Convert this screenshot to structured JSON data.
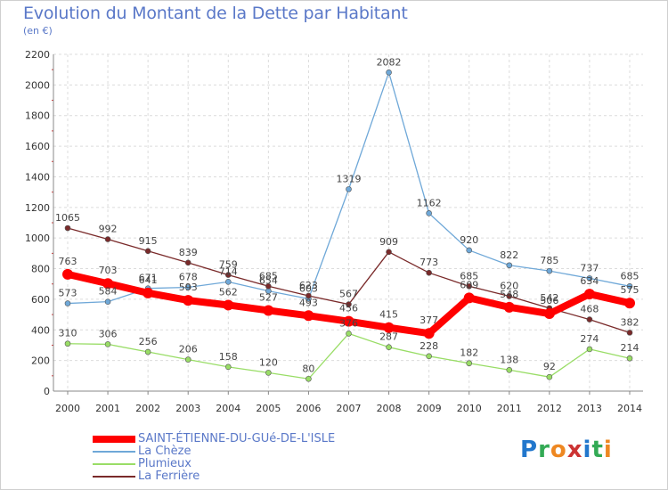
{
  "chart_data": {
    "type": "line",
    "title": "Evolution du Montant de la Dette par Habitant",
    "subtitle": "(en €)",
    "xlabel": "",
    "ylabel": "",
    "categories": [
      "2000",
      "2001",
      "2002",
      "2003",
      "2004",
      "2005",
      "2006",
      "2007",
      "2008",
      "2009",
      "2010",
      "2011",
      "2012",
      "2013",
      "2014"
    ],
    "ylim": [
      0,
      2200
    ],
    "yticks": [
      "0",
      "200",
      "400",
      "600",
      "800",
      "1000",
      "1200",
      "1400",
      "1600",
      "1800",
      "2000",
      "2200"
    ],
    "grid": true,
    "legend_position": "bottom-left",
    "series": [
      {
        "name": "SAINT-ÉTIENNE-DU-GUé-DE-L'ISLE",
        "color": "#ff0000",
        "values": [
          763,
          703,
          641,
          593,
          562,
          527,
          493,
          456,
          415,
          377,
          609,
          548,
          506,
          634,
          575
        ]
      },
      {
        "name": "La Chèze",
        "color": "#6fa8d8",
        "values": [
          573,
          584,
          671,
          678,
          714,
          654,
          603,
          1319,
          2082,
          1162,
          920,
          822,
          785,
          737,
          685
        ]
      },
      {
        "name": "Plumieux",
        "color": "#99dd66",
        "values": [
          310,
          306,
          256,
          206,
          158,
          120,
          80,
          376,
          287,
          228,
          182,
          138,
          92,
          274,
          214
        ]
      },
      {
        "name": "La Ferrière",
        "color": "#7a2a2a",
        "values": [
          1065,
          992,
          915,
          839,
          759,
          685,
          623,
          567,
          909,
          773,
          685,
          620,
          542,
          468,
          382
        ]
      }
    ]
  },
  "logo": {
    "text": "Proxiti",
    "letters": [
      "P",
      "r",
      "o",
      "x",
      "i",
      "t",
      "i"
    ],
    "colors": [
      "#2277cc",
      "#33aa55",
      "#ee8822",
      "#cc3333",
      "#2277cc",
      "#33aa55",
      "#ee8822"
    ]
  }
}
